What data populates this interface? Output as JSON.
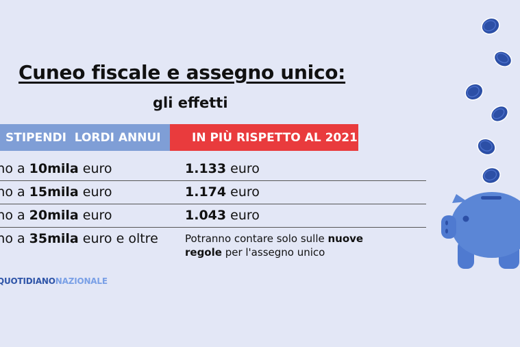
{
  "title": "Cuneo fiscale e assegno unico:",
  "subtitle": "gli effetti",
  "table": {
    "header_left": "STIPENDI  LORDI ANNUI",
    "header_right": "IN PIÙ RISPETTO AL 2021",
    "rows": [
      {
        "pre": "ino a ",
        "bold": "10mila",
        "post": " euro",
        "value_bold": "1.133",
        "value_post": " euro"
      },
      {
        "pre": "ino a ",
        "bold": "15mila",
        "post": " euro",
        "value_bold": "1.174",
        "value_post": " euro"
      },
      {
        "pre": "ino a ",
        "bold": "20mila",
        "post": " euro",
        "value_bold": "1.043",
        "value_post": " euro"
      },
      {
        "pre": "ino a ",
        "bold": "35mila",
        "post": " euro e oltre"
      }
    ],
    "note": {
      "part1": "Potranno contare solo sulle ",
      "bold1": "nuove",
      "bold2": "regole",
      "part2": " per l'assegno unico"
    }
  },
  "brand": {
    "a": "QUOTIDIANO",
    "b": "NAZIONALE"
  },
  "colors": {
    "background": "#e3e7f6",
    "header_left": "#7f9ed6",
    "header_right": "#e93b3d",
    "coin": "#2c4fa6",
    "piggy": "#5b86d6"
  },
  "icons": [
    "coin-icon",
    "piggy-bank-icon"
  ]
}
